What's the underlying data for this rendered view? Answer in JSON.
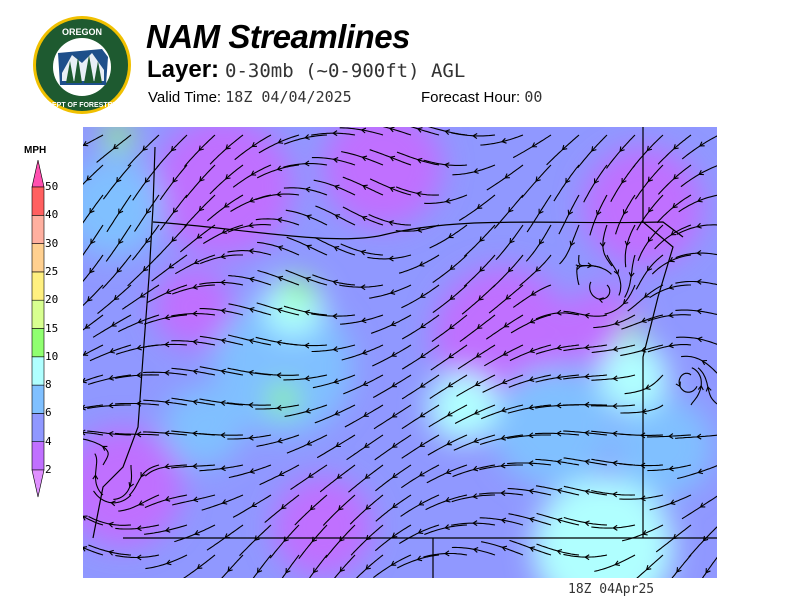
{
  "header": {
    "title": "NAM Streamlines",
    "layer_label": "Layer:",
    "layer_value": "0-30mb (~0-900ft) AGL",
    "valid_label": "Valid Time:",
    "valid_value": "18Z 04/04/2025",
    "forecast_label": "Forecast Hour:",
    "forecast_value": "00"
  },
  "logo": {
    "text_top": "OREGON",
    "text_bottom": "DEPARTMENT OF FORESTRY"
  },
  "colorbar": {
    "units": "MPH",
    "ticks": [
      "2",
      "4",
      "6",
      "8",
      "10",
      "15",
      "20",
      "25",
      "30",
      "40",
      "50"
    ],
    "colors": [
      "#c070ff",
      "#9098ff",
      "#80c0ff",
      "#b0ffff",
      "#90ff70",
      "#d8ff90",
      "#fff080",
      "#ffd090",
      "#ffb0a0",
      "#ff6060"
    ],
    "under_color": "#e090ff",
    "over_color": "#ff50b0"
  },
  "footer": {
    "timestamp": "18Z 04Apr25"
  }
}
